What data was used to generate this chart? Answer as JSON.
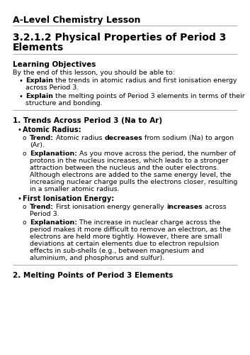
{
  "bg_color": "#ffffff",
  "text_color": "#000000",
  "line_color": "#aaaaaa",
  "header": "A-Level Chemistry Lesson",
  "title_line1": "3.2.1.2 Physical Properties of Period 3",
  "title_line2": "Elements",
  "lo_header": "Learning Objectives",
  "lo_intro": "By the end of this lesson, you should be able to:",
  "sec1_head": "1. Trends Across Period 3 (Na to Ar)",
  "sec2_head": "2. Melting Points of Period 3 Elements"
}
